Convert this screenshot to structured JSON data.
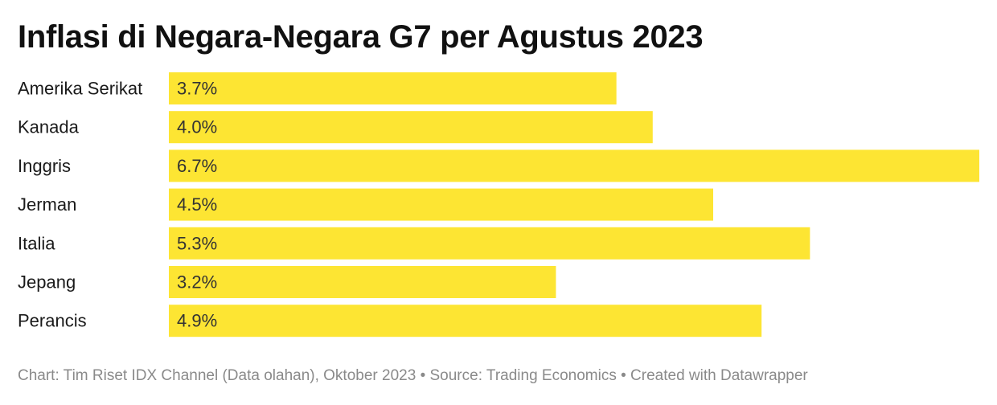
{
  "chart_data": {
    "type": "bar",
    "orientation": "horizontal",
    "title": "Inflasi di Negara-Negara G7 per Agustus 2023",
    "categories": [
      "Amerika Serikat",
      "Kanada",
      "Inggris",
      "Jerman",
      "Italia",
      "Jepang",
      "Perancis"
    ],
    "values": [
      3.7,
      4.0,
      6.7,
      4.5,
      5.3,
      3.2,
      4.9
    ],
    "value_labels": [
      "3.7%",
      "4.0%",
      "6.7%",
      "4.5%",
      "5.3%",
      "3.2%",
      "4.9%"
    ],
    "unit": "%",
    "xlim": [
      0,
      6.7
    ],
    "grid": false,
    "legend": "none",
    "bar_color": "#fde533"
  },
  "footer": {
    "text": "Chart: Tim Riset IDX Channel (Data olahan), Oktober 2023 • Source: Trading Economics • Created with Datawrapper"
  }
}
